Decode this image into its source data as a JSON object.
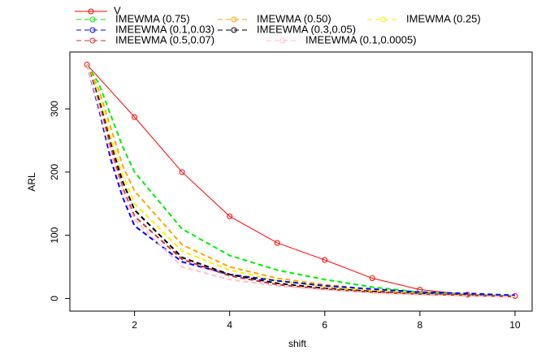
{
  "chart_data": {
    "type": "line",
    "x_label": "shift",
    "y_label": "ARL",
    "xlim": [
      0.64,
      10.36
    ],
    "ylim": [
      -20,
      390
    ],
    "xticks": [
      2,
      4,
      6,
      8,
      10
    ],
    "yticks": [
      0,
      100,
      200,
      300
    ],
    "series": [
      {
        "name": "V",
        "color": "#ff0000",
        "dash": false,
        "markers": true,
        "x": [
          1,
          2,
          3,
          4,
          5,
          6,
          7,
          8,
          9,
          10
        ],
        "values": [
          370,
          287,
          200,
          130,
          88,
          61,
          32,
          14,
          6,
          4
        ]
      },
      {
        "name": "IMEWMA (0.75)",
        "color": "#00ee00",
        "dash": true,
        "markers": false,
        "x": [
          1,
          1.25,
          1.5,
          1.75,
          2,
          3,
          4,
          5,
          6,
          7,
          8,
          9,
          10
        ],
        "values": [
          370,
          340,
          290,
          240,
          200,
          110,
          68,
          45,
          30,
          18,
          10,
          6,
          4
        ]
      },
      {
        "name": "IMEWMA (0.50)",
        "color": "#ffa500",
        "dash": true,
        "markers": false,
        "x": [
          1,
          1.25,
          1.5,
          1.75,
          2,
          3,
          4,
          5,
          6,
          7,
          8,
          9,
          10
        ],
        "values": [
          370,
          330,
          270,
          210,
          170,
          85,
          50,
          32,
          22,
          14,
          9,
          5,
          3
        ]
      },
      {
        "name": "IMEWMA (0.25)",
        "color": "#ffee00",
        "dash": true,
        "markers": false,
        "x": [
          1,
          1.25,
          1.5,
          1.75,
          2,
          3,
          4,
          5,
          6,
          7,
          8,
          9,
          10
        ],
        "values": [
          370,
          320,
          255,
          195,
          150,
          75,
          45,
          28,
          19,
          12,
          8,
          5,
          3
        ]
      },
      {
        "name": "IMEEWMA (0.1,0.03)",
        "color": "#0000ff",
        "dash": true,
        "markers": false,
        "x": [
          1,
          1.25,
          1.5,
          1.75,
          2,
          3,
          4,
          5,
          6,
          7,
          8,
          9,
          10
        ],
        "values": [
          370,
          300,
          220,
          160,
          115,
          58,
          38,
          28,
          20,
          15,
          10,
          8,
          5
        ]
      },
      {
        "name": "IMEEWMA (0.3,0.05)",
        "color": "#000000",
        "dash": true,
        "markers": false,
        "x": [
          1,
          1.25,
          1.5,
          1.75,
          2,
          3,
          4,
          5,
          6,
          7,
          8,
          9,
          10
        ],
        "values": [
          370,
          315,
          245,
          185,
          140,
          65,
          38,
          24,
          16,
          11,
          7,
          5,
          3
        ]
      },
      {
        "name": "IMEEWMA (0.5,0.07)",
        "color": "#cd3333",
        "dash": true,
        "markers": false,
        "x": [
          1,
          1.25,
          1.5,
          1.75,
          2,
          3,
          4,
          5,
          6,
          7,
          8,
          9,
          10
        ],
        "values": [
          370,
          310,
          240,
          175,
          130,
          62,
          36,
          22,
          15,
          10,
          7,
          5,
          3
        ]
      },
      {
        "name": "IMEEWMA (0.1,0.0005)",
        "color": "#ffc0cb",
        "dash": true,
        "markers": false,
        "x": [
          1,
          1.25,
          1.5,
          1.75,
          2,
          3,
          4,
          5,
          6,
          7,
          8,
          9,
          10
        ],
        "values": [
          370,
          305,
          230,
          170,
          125,
          50,
          30,
          20,
          14,
          9,
          6,
          4,
          3
        ]
      }
    ]
  }
}
